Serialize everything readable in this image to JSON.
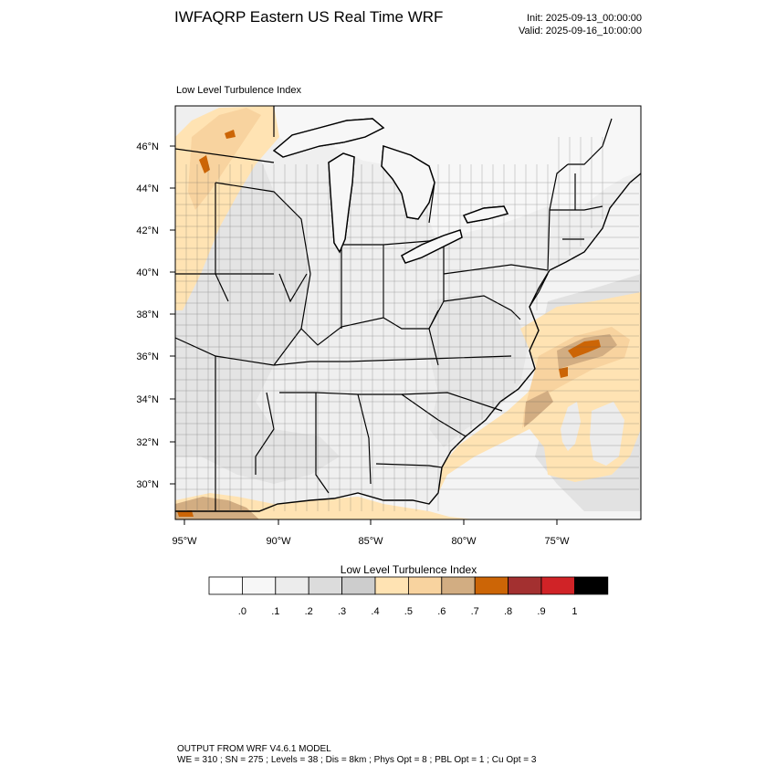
{
  "header": {
    "title": "IWFAQRP Eastern US Real Time WRF",
    "init": "Init: 2025-09-13_00:00:00",
    "valid": "Valid: 2025-09-16_10:00:00"
  },
  "map": {
    "field_label": "Low Level Turbulence Index",
    "lat_labels": [
      "46°N",
      "44°N",
      "42°N",
      "40°N",
      "38°N",
      "36°N",
      "34°N",
      "32°N",
      "30°N"
    ],
    "lon_labels": [
      "95°W",
      "90°W",
      "85°W",
      "80°W",
      "75°W"
    ]
  },
  "colorbar": {
    "title": "Low Level Turbulence Index",
    "tick_labels": [
      ".0",
      ".1",
      ".2",
      ".3",
      ".4",
      ".5",
      ".6",
      ".7",
      ".8",
      ".9",
      "1"
    ],
    "colors": [
      "#ffffff",
      "#f7f7f7",
      "#ececec",
      "#dcdcdc",
      "#cdcdcd",
      "#ffe3b3",
      "#f8d39f",
      "#d2ad82",
      "#cc6506",
      "#a33030",
      "#d02327",
      "#000000"
    ]
  },
  "footer": {
    "line1": "OUTPUT FROM WRF V4.6.1 MODEL",
    "line2": "WE = 310 ; SN = 275 ; Levels = 38 ; Dis = 8km ; Phys Opt = 8 ; PBL Opt = 1 ; Cu Opt = 3"
  }
}
